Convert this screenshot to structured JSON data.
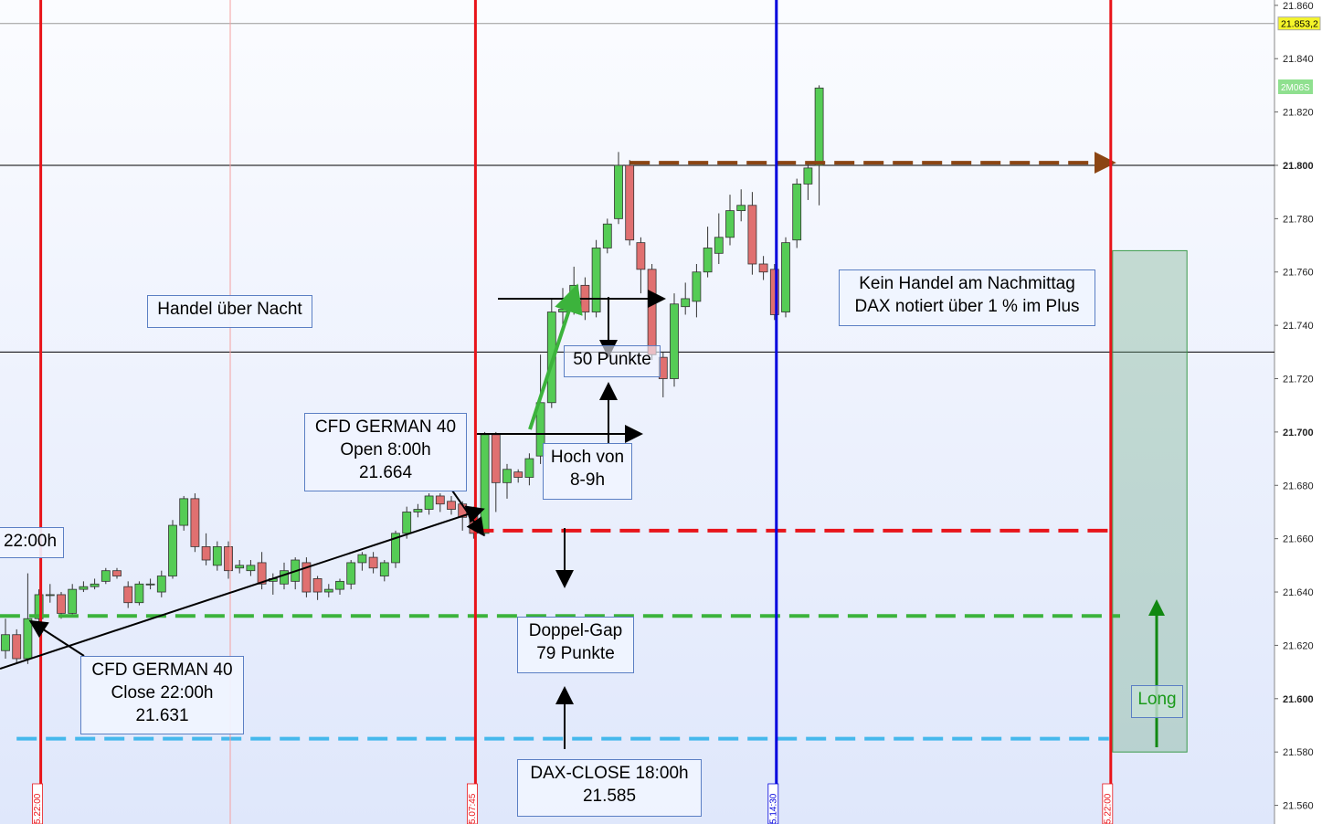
{
  "chart_data": {
    "type": "candlestick",
    "open": [
      21618,
      21624,
      21615,
      21630,
      21639,
      21639,
      21632,
      21641,
      21642,
      21644,
      21648,
      21642,
      21636,
      21643,
      21640,
      21646,
      21665,
      21675,
      21657,
      21650,
      21657,
      21649,
      21648,
      21651,
      21644,
      21643,
      21644,
      21651,
      21645,
      21640,
      21641,
      21643,
      21651,
      21653,
      21646,
      21651,
      21662,
      21670,
      21671,
      21676,
      21674,
      21673,
      21671,
      21662,
      21699,
      21681,
      21685,
      21683,
      21691,
      21711,
      21745,
      21746,
      21755,
      21745,
      21769,
      21780,
      21800,
      21771,
      21761,
      21728,
      21720,
      21747,
      21749,
      21760,
      21767,
      21773,
      21783,
      21785,
      21763,
      21761,
      21745,
      21772,
      21793,
      21800
    ],
    "high": [
      21630,
      21626,
      21647,
      21641,
      21643,
      21640,
      21643,
      21644,
      21645,
      21649,
      21649,
      21644,
      21644,
      21645,
      21648,
      21667,
      21676,
      21677,
      21662,
      21659,
      21659,
      21652,
      21652,
      21655,
      21647,
      21651,
      21653,
      21653,
      21646,
      21643,
      21645,
      21652,
      21655,
      21655,
      21652,
      21663,
      21672,
      21673,
      21677,
      21677,
      21676,
      21674,
      21672,
      21700,
      21700,
      21688,
      21686,
      21692,
      21729,
      21750,
      21754,
      21762,
      21758,
      21772,
      21780,
      21805,
      21802,
      21773,
      21763,
      21730,
      21752,
      21756,
      21763,
      21777,
      21782,
      21789,
      21791,
      21790,
      21766,
      21763,
      21773,
      21795,
      21801,
      21830
    ],
    "low": [
      21615,
      21613,
      21613,
      21628,
      21636,
      21630,
      21631,
      21640,
      21641,
      21643,
      21645,
      21634,
      21635,
      21641,
      21638,
      21645,
      21663,
      21655,
      21650,
      21648,
      21645,
      21647,
      21646,
      21641,
      21639,
      21641,
      21641,
      21638,
      21637,
      21638,
      21639,
      21641,
      21648,
      21647,
      21644,
      21649,
      21660,
      21668,
      21669,
      21670,
      21669,
      21663,
      21660,
      21661,
      21670,
      21675,
      21681,
      21680,
      21688,
      21709,
      21738,
      21744,
      21742,
      21743,
      21767,
      21778,
      21770,
      21752,
      21727,
      21713,
      21717,
      21744,
      21743,
      21758,
      21763,
      21770,
      21779,
      21759,
      21757,
      21742,
      21743,
      21769,
      21787,
      21785
    ],
    "close": [
      21624,
      21615,
      21630,
      21639,
      21639,
      21632,
      21641,
      21642,
      21643,
      21648,
      21646,
      21636,
      21643,
      21643,
      21646,
      21665,
      21675,
      21657,
      21652,
      21657,
      21648,
      21650,
      21650,
      21643,
      21645,
      21648,
      21652,
      21640,
      21640,
      21641,
      21644,
      21651,
      21654,
      21649,
      21651,
      21662,
      21670,
      21671,
      21676,
      21673,
      21671,
      21668,
      21662,
      21699,
      21681,
      21686,
      21683,
      21690,
      21711,
      21745,
      21746,
      21755,
      21745,
      21769,
      21778,
      21800,
      21772,
      21761,
      21729,
      21720,
      21748,
      21750,
      21760,
      21769,
      21773,
      21783,
      21785,
      21763,
      21760,
      21744,
      21771,
      21793,
      21799,
      21829
    ],
    "up_color": "#55cc55",
    "down_color": "#e07070",
    "ylim": [
      21553,
      21862
    ],
    "yticks": [
      {
        "value": 21560,
        "label": "21.560"
      },
      {
        "value": 21580,
        "label": "21.580"
      },
      {
        "value": 21600,
        "label": "21.600"
      },
      {
        "value": 21620,
        "label": "21.620"
      },
      {
        "value": 21640,
        "label": "21.640"
      },
      {
        "value": 21660,
        "label": "21.660"
      },
      {
        "value": 21680,
        "label": "21.680"
      },
      {
        "value": 21700,
        "label": "21.700"
      },
      {
        "value": 21720,
        "label": "21.720"
      },
      {
        "value": 21740,
        "label": "21.740"
      },
      {
        "value": 21760,
        "label": "21.760"
      },
      {
        "value": 21780,
        "label": "21.780"
      },
      {
        "value": 21800,
        "label": "21.800"
      },
      {
        "value": 21820,
        "label": "21.820"
      },
      {
        "value": 21840,
        "label": "21.840"
      },
      {
        "value": 21860,
        "label": "21.860"
      }
    ],
    "last_price": {
      "value": 21853.2,
      "label": "21.853,2"
    },
    "timer": "2M06S",
    "hlines": [
      {
        "value": 21853.2,
        "color": "#999999"
      },
      {
        "value": 21800,
        "color": "#000000"
      },
      {
        "value": 21730,
        "color": "#000000"
      }
    ],
    "levels": [
      {
        "value": 21663,
        "from": 42,
        "to": 99,
        "color": "#e8141a"
      },
      {
        "value": 21631,
        "from": -0.5,
        "to": 100,
        "color": "#3cb33c"
      },
      {
        "value": 21585,
        "from": 1,
        "to": 99,
        "color": "#45b8ec"
      },
      {
        "value": 21801,
        "from": 56,
        "to": 99,
        "color": "#8b4513"
      }
    ],
    "vlines": [
      {
        "x": 3,
        "color": "#e8141a",
        "width": 3,
        "label": "5.22:00"
      },
      {
        "x": 20,
        "color": "#f4a0a0",
        "width": 1
      },
      {
        "x": 42,
        "color": "#e8141a",
        "width": 3,
        "label": "5.07:45"
      },
      {
        "x": 69,
        "color": "#0000dd",
        "width": 3,
        "label": "5.14:30"
      },
      {
        "x": 99,
        "color": "#e8141a",
        "width": 3,
        "label": "5.22:00"
      }
    ],
    "position_box": {
      "label": "Long",
      "top": 21768,
      "bottom": 21580,
      "from": 99,
      "to": 106
    },
    "annotations": [
      {
        "text": "Handel über Nacht"
      },
      {
        "text": "22:00h"
      },
      {
        "text": "CFD GERMAN 40\nOpen 8:00h\n21.664"
      },
      {
        "text": "CFD GERMAN 40\nClose 22:00h\n21.631"
      },
      {
        "text": "50 Punkte"
      },
      {
        "text": "Hoch von\n8-9h"
      },
      {
        "text": "Doppel-Gap\n79 Punkte"
      },
      {
        "text": "DAX-CLOSE 18:00h\n21.585"
      },
      {
        "text": "Kein Handel am Nachmittag\nDAX notiert über 1 % im Plus"
      }
    ]
  }
}
